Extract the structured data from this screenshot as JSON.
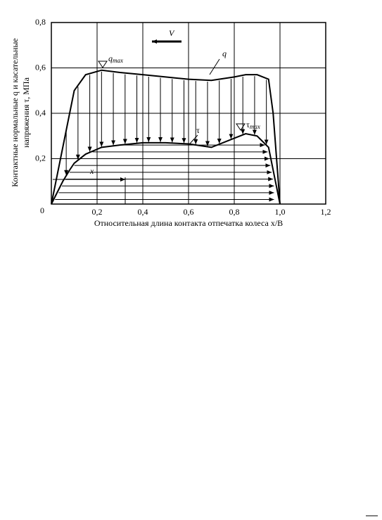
{
  "chart_data": {
    "type": "line",
    "x_label": "Относительная длина контакта отпечатка колеса x/B",
    "y_label": [
      "Контактные нормальные q и касательные",
      "напряжения τ, МПа"
    ],
    "x": [
      0,
      0.05,
      0.08,
      0.1,
      0.15,
      0.22,
      0.3,
      0.4,
      0.5,
      0.6,
      0.7,
      0.8,
      0.85,
      0.9,
      0.95,
      0.97,
      1.0
    ],
    "series": [
      {
        "name": "q",
        "color": "#000000",
        "values": [
          0,
          0.25,
          0.4,
          0.5,
          0.57,
          0.59,
          0.58,
          0.57,
          0.56,
          0.55,
          0.545,
          0.56,
          0.57,
          0.57,
          0.55,
          0.4,
          0
        ]
      },
      {
        "name": "τ",
        "color": "#000000",
        "values": [
          0,
          0.1,
          0.15,
          0.18,
          0.22,
          0.25,
          0.26,
          0.27,
          0.27,
          0.265,
          0.25,
          0.29,
          0.31,
          0.3,
          0.25,
          0.15,
          0
        ]
      }
    ],
    "annotations": [
      {
        "text": "V"
      },
      {
        "text": "q",
        "subscript": "max"
      },
      {
        "text": "τ",
        "subscript": "max"
      },
      {
        "text": "x"
      }
    ],
    "xlim": [
      0,
      1.2
    ],
    "xticks": [
      {
        "value": 0.2,
        "label": "0,2"
      },
      {
        "value": 0.4,
        "label": "0,4"
      },
      {
        "value": 0.6,
        "label": "0,6"
      },
      {
        "value": 0.8,
        "label": "0,8"
      },
      {
        "value": 1.0,
        "label": "1,0"
      },
      {
        "value": 1.2,
        "label": "1,2"
      }
    ],
    "ylim": [
      0,
      0.8
    ],
    "yticks": [
      0,
      {
        "value": 0.2,
        "label": "0,2"
      },
      {
        "value": 0.4,
        "label": "0,4"
      },
      {
        "value": 0.6,
        "label": "0,6"
      },
      {
        "value": 0.8,
        "label": "0,8"
      }
    ],
    "grid": true
  }
}
